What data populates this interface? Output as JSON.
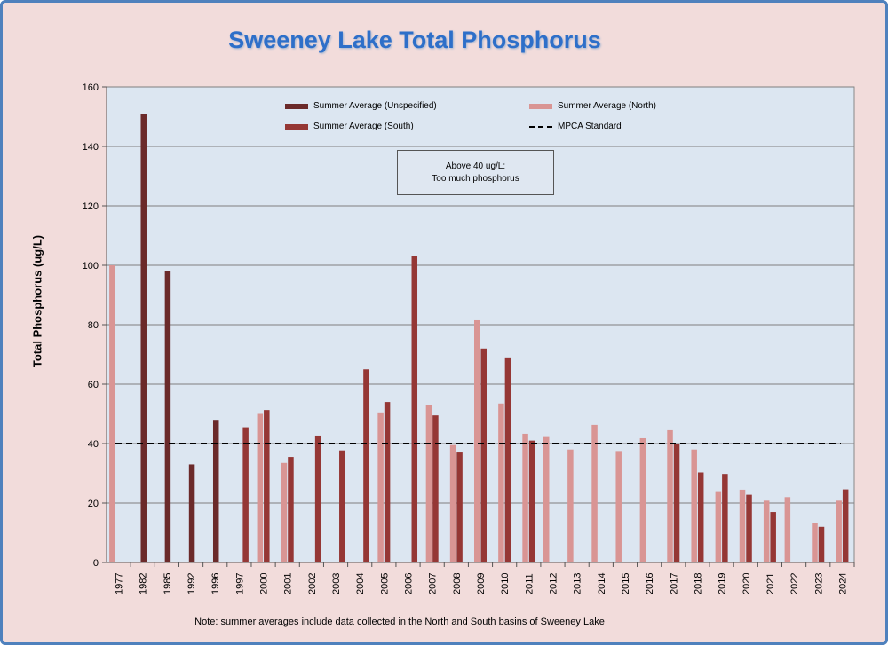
{
  "title": "Sweeney Lake Total Phosphorus",
  "note": "Note: summer averages include data collected in the North and South basins of Sweeney Lake",
  "annotation": {
    "line1": "Above 40 ug/L:",
    "line2": "Too much phosphorus"
  },
  "colors": {
    "unspecified": "#6b2a2a",
    "north": "#d99594",
    "south": "#953735",
    "plot_bg": "#dce6f1",
    "page_bg": "#f2dcdb",
    "border": "#4f81bd"
  },
  "chart_data": {
    "type": "bar",
    "ylabel": "Total Phosphorus (ug/L)",
    "xlabel": "",
    "ylim": [
      0,
      160
    ],
    "yticks": [
      0,
      20,
      40,
      60,
      80,
      100,
      120,
      140,
      160
    ],
    "grid": true,
    "legend_placement": "top",
    "categories": [
      "1977",
      "1982",
      "1985",
      "1992",
      "1996",
      "1997",
      "2000",
      "2001",
      "2002",
      "2003",
      "2004",
      "2005",
      "2006",
      "2007",
      "2008",
      "2009",
      "2010",
      "2011",
      "2012",
      "2013",
      "2014",
      "2015",
      "2016",
      "2017",
      "2018",
      "2019",
      "2020",
      "2021",
      "2022",
      "2023",
      "2024"
    ],
    "series": [
      {
        "name": "Summer Average (Unspecified)",
        "key": "unspecified",
        "values": [
          null,
          151,
          98,
          33,
          48,
          null,
          null,
          null,
          null,
          null,
          null,
          null,
          null,
          null,
          null,
          null,
          null,
          null,
          null,
          null,
          null,
          null,
          null,
          null,
          null,
          null,
          null,
          null,
          null,
          null,
          null
        ]
      },
      {
        "name": "Summer Average (North)",
        "key": "north",
        "values": [
          100,
          null,
          null,
          null,
          null,
          null,
          50,
          33.5,
          null,
          null,
          null,
          50.5,
          null,
          53,
          39.5,
          81.5,
          53.5,
          43.3,
          42.5,
          38,
          46.3,
          37.5,
          41.8,
          44.5,
          38,
          24,
          24.5,
          20.8,
          22,
          13.3,
          20.8
        ]
      },
      {
        "name": "Summer Average (South)",
        "key": "south",
        "values": [
          null,
          null,
          null,
          null,
          null,
          45.5,
          51.3,
          35.5,
          42.7,
          37.7,
          65,
          54,
          103,
          49.5,
          37,
          72,
          69,
          41,
          null,
          null,
          null,
          null,
          null,
          40,
          30.3,
          29.8,
          22.8,
          17,
          null,
          12,
          24.6
        ]
      }
    ],
    "reference_line": {
      "name": "MPCA Standard",
      "value": 40
    }
  }
}
